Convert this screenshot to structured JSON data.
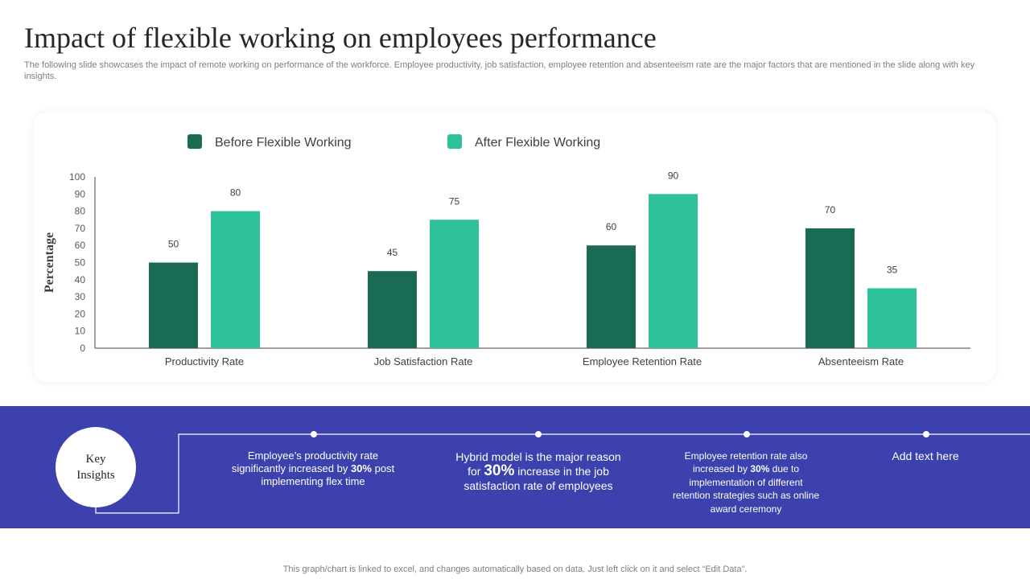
{
  "header": {
    "title": "Impact of flexible working on employees performance",
    "subtitle": "The following slide showcases the impact of remote working on performance of the workforce. Employee productivity, job satisfaction, employee retention and absenteeism rate are the major factors that are mentioned in the slide along with key insights."
  },
  "colors": {
    "before": "#1a6b56",
    "after": "#2dc299",
    "band": "#3d41ad"
  },
  "chart_data": {
    "type": "bar",
    "title": "",
    "xlabel": "",
    "ylabel": "Percentage",
    "categories": [
      "Productivity Rate",
      "Job Satisfaction Rate",
      "Employee Retention Rate",
      "Absenteeism Rate"
    ],
    "series": [
      {
        "name": "Before Flexible Working",
        "values": [
          50,
          45,
          60,
          70
        ]
      },
      {
        "name": "After Flexible Working",
        "values": [
          80,
          75,
          90,
          35
        ]
      }
    ],
    "ylim": [
      0,
      100
    ],
    "yticks": [
      0,
      10,
      20,
      30,
      40,
      50,
      60,
      70,
      80,
      90,
      100
    ],
    "legend_position": "top-left",
    "grid": false
  },
  "insights": {
    "label": "Key\nInsights",
    "items": [
      {
        "pre": "Employee’s productivity rate significantly increased by ",
        "highlight": "30%",
        "post": " post implementing flex time"
      },
      {
        "pre": "Hybrid model is the major reason for ",
        "highlight": "30%",
        "post": " increase in the job satisfaction rate of employees"
      },
      {
        "pre": "Employee retention rate also increased by ",
        "highlight": "30%",
        "post": " due to implementation of different retention strategies such as online award ceremony"
      },
      {
        "pre": "Add text here",
        "highlight": "",
        "post": ""
      }
    ]
  },
  "footer": {
    "note": "This graph/chart is linked to excel, and changes automatically based on data. Just left click on it and select “Edit Data”."
  }
}
